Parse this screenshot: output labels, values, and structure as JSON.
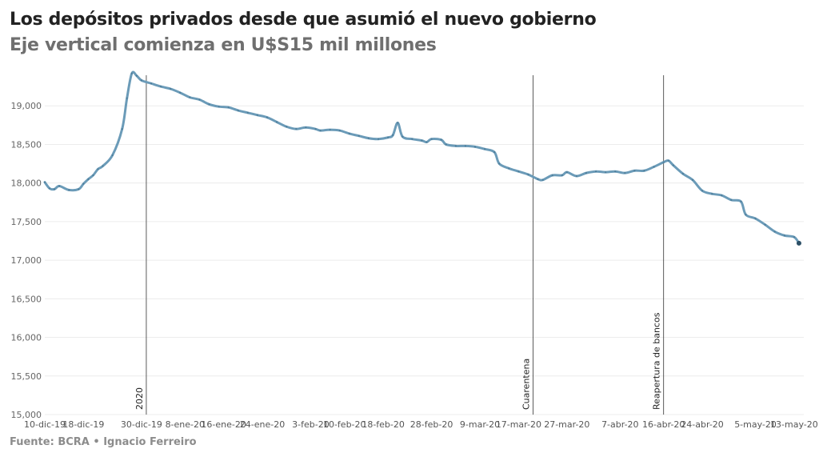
{
  "header": {
    "title": "Los depósitos privados desde que asumió el nuevo gobierno",
    "subtitle": "Eje vertical comienza en U$S15 mil millones"
  },
  "footer": {
    "source": "Fuente: BCRA • Ignacio Ferreiro"
  },
  "colors": {
    "line": "#6b9bb8",
    "dot": "#2c4f66",
    "grid": "#ececec",
    "annotation": "#333333"
  },
  "chart_data": {
    "type": "line",
    "title": "Los depósitos privados desde que asumió el nuevo gobierno",
    "subtitle": "Eje vertical comienza en U$S15 mil millones",
    "xlabel": "",
    "ylabel": "",
    "ylim": [
      15000,
      19500
    ],
    "yticks": [
      15000,
      15500,
      16000,
      16500,
      17000,
      17500,
      18000,
      18500,
      19000
    ],
    "ytick_labels": [
      "15,000",
      "15,500",
      "16,000",
      "16,500",
      "17,000",
      "17,500",
      "18,000",
      "18,500",
      "19,000"
    ],
    "x_start": "2019-12-10",
    "x_end": "2020-05-15",
    "grid": true,
    "legend": "none",
    "xticks": [
      {
        "date": "2019-12-10",
        "label": "10-dic-19"
      },
      {
        "date": "2019-12-18",
        "label": "18-dic-19"
      },
      {
        "date": "2019-12-30",
        "label": "30-dic-19"
      },
      {
        "date": "2020-01-08",
        "label": "8-ene-20"
      },
      {
        "date": "2020-01-16",
        "label": "16-ene-20"
      },
      {
        "date": "2020-01-24",
        "label": "24-ene-20"
      },
      {
        "date": "2020-02-03",
        "label": "3-feb-20"
      },
      {
        "date": "2020-02-10",
        "label": "10-feb-20"
      },
      {
        "date": "2020-02-18",
        "label": "18-feb-20"
      },
      {
        "date": "2020-02-28",
        "label": "28-feb-20"
      },
      {
        "date": "2020-03-09",
        "label": "9-mar-20"
      },
      {
        "date": "2020-03-17",
        "label": "17-mar-20"
      },
      {
        "date": "2020-03-27",
        "label": "27-mar-20"
      },
      {
        "date": "2020-04-07",
        "label": "7-abr-20"
      },
      {
        "date": "2020-04-16",
        "label": "16-abr-20"
      },
      {
        "date": "2020-04-24",
        "label": "24-abr-20"
      },
      {
        "date": "2020-05-05",
        "label": "5-may-20"
      },
      {
        "date": "2020-05-13",
        "label": "13-may-20"
      }
    ],
    "annotations": [
      {
        "date": "2019-12-31",
        "label": "2020"
      },
      {
        "date": "2020-03-20",
        "label": "Cuarentena"
      },
      {
        "date": "2020-04-16",
        "label": "Reapertura de bancos"
      }
    ],
    "series": [
      {
        "points": [
          {
            "date": "2019-12-10",
            "value": 18010
          },
          {
            "date": "2019-12-11",
            "value": 17930
          },
          {
            "date": "2019-12-12",
            "value": 17920
          },
          {
            "date": "2019-12-13",
            "value": 17960
          },
          {
            "date": "2019-12-15",
            "value": 17910
          },
          {
            "date": "2019-12-17",
            "value": 17920
          },
          {
            "date": "2019-12-18",
            "value": 17990
          },
          {
            "date": "2019-12-19",
            "value": 18050
          },
          {
            "date": "2019-12-20",
            "value": 18100
          },
          {
            "date": "2019-12-21",
            "value": 18180
          },
          {
            "date": "2019-12-22",
            "value": 18220
          },
          {
            "date": "2019-12-24",
            "value": 18360
          },
          {
            "date": "2019-12-26",
            "value": 18700
          },
          {
            "date": "2019-12-27",
            "value": 19100
          },
          {
            "date": "2019-12-28",
            "value": 19420
          },
          {
            "date": "2019-12-29",
            "value": 19390
          },
          {
            "date": "2019-12-30",
            "value": 19330
          },
          {
            "date": "2020-01-01",
            "value": 19290
          },
          {
            "date": "2020-01-03",
            "value": 19250
          },
          {
            "date": "2020-01-05",
            "value": 19220
          },
          {
            "date": "2020-01-07",
            "value": 19170
          },
          {
            "date": "2020-01-09",
            "value": 19110
          },
          {
            "date": "2020-01-11",
            "value": 19080
          },
          {
            "date": "2020-01-13",
            "value": 19020
          },
          {
            "date": "2020-01-15",
            "value": 18990
          },
          {
            "date": "2020-01-17",
            "value": 18980
          },
          {
            "date": "2020-01-19",
            "value": 18940
          },
          {
            "date": "2020-01-21",
            "value": 18910
          },
          {
            "date": "2020-01-23",
            "value": 18880
          },
          {
            "date": "2020-01-25",
            "value": 18850
          },
          {
            "date": "2020-01-27",
            "value": 18790
          },
          {
            "date": "2020-01-29",
            "value": 18730
          },
          {
            "date": "2020-01-31",
            "value": 18700
          },
          {
            "date": "2020-02-02",
            "value": 18720
          },
          {
            "date": "2020-02-04",
            "value": 18700
          },
          {
            "date": "2020-02-05",
            "value": 18680
          },
          {
            "date": "2020-02-07",
            "value": 18690
          },
          {
            "date": "2020-02-09",
            "value": 18680
          },
          {
            "date": "2020-02-11",
            "value": 18640
          },
          {
            "date": "2020-02-13",
            "value": 18610
          },
          {
            "date": "2020-02-15",
            "value": 18580
          },
          {
            "date": "2020-02-17",
            "value": 18570
          },
          {
            "date": "2020-02-19",
            "value": 18590
          },
          {
            "date": "2020-02-20",
            "value": 18620
          },
          {
            "date": "2020-02-21",
            "value": 18780
          },
          {
            "date": "2020-02-22",
            "value": 18600
          },
          {
            "date": "2020-02-24",
            "value": 18570
          },
          {
            "date": "2020-02-26",
            "value": 18550
          },
          {
            "date": "2020-02-27",
            "value": 18530
          },
          {
            "date": "2020-02-28",
            "value": 18570
          },
          {
            "date": "2020-03-01",
            "value": 18560
          },
          {
            "date": "2020-03-02",
            "value": 18500
          },
          {
            "date": "2020-03-04",
            "value": 18480
          },
          {
            "date": "2020-03-06",
            "value": 18480
          },
          {
            "date": "2020-03-08",
            "value": 18470
          },
          {
            "date": "2020-03-10",
            "value": 18440
          },
          {
            "date": "2020-03-12",
            "value": 18400
          },
          {
            "date": "2020-03-13",
            "value": 18250
          },
          {
            "date": "2020-03-15",
            "value": 18190
          },
          {
            "date": "2020-03-17",
            "value": 18150
          },
          {
            "date": "2020-03-19",
            "value": 18110
          },
          {
            "date": "2020-03-21",
            "value": 18050
          },
          {
            "date": "2020-03-22",
            "value": 18040
          },
          {
            "date": "2020-03-24",
            "value": 18100
          },
          {
            "date": "2020-03-26",
            "value": 18100
          },
          {
            "date": "2020-03-27",
            "value": 18140
          },
          {
            "date": "2020-03-29",
            "value": 18090
          },
          {
            "date": "2020-03-31",
            "value": 18130
          },
          {
            "date": "2020-04-02",
            "value": 18150
          },
          {
            "date": "2020-04-04",
            "value": 18140
          },
          {
            "date": "2020-04-06",
            "value": 18150
          },
          {
            "date": "2020-04-08",
            "value": 18130
          },
          {
            "date": "2020-04-10",
            "value": 18160
          },
          {
            "date": "2020-04-12",
            "value": 18160
          },
          {
            "date": "2020-04-14",
            "value": 18210
          },
          {
            "date": "2020-04-16",
            "value": 18270
          },
          {
            "date": "2020-04-17",
            "value": 18290
          },
          {
            "date": "2020-04-18",
            "value": 18230
          },
          {
            "date": "2020-04-20",
            "value": 18120
          },
          {
            "date": "2020-04-22",
            "value": 18040
          },
          {
            "date": "2020-04-24",
            "value": 17900
          },
          {
            "date": "2020-04-26",
            "value": 17860
          },
          {
            "date": "2020-04-28",
            "value": 17840
          },
          {
            "date": "2020-04-30",
            "value": 17780
          },
          {
            "date": "2020-05-02",
            "value": 17760
          },
          {
            "date": "2020-05-03",
            "value": 17590
          },
          {
            "date": "2020-05-05",
            "value": 17540
          },
          {
            "date": "2020-05-07",
            "value": 17460
          },
          {
            "date": "2020-05-09",
            "value": 17370
          },
          {
            "date": "2020-05-11",
            "value": 17320
          },
          {
            "date": "2020-05-13",
            "value": 17300
          },
          {
            "date": "2020-05-14",
            "value": 17220
          }
        ]
      }
    ]
  }
}
